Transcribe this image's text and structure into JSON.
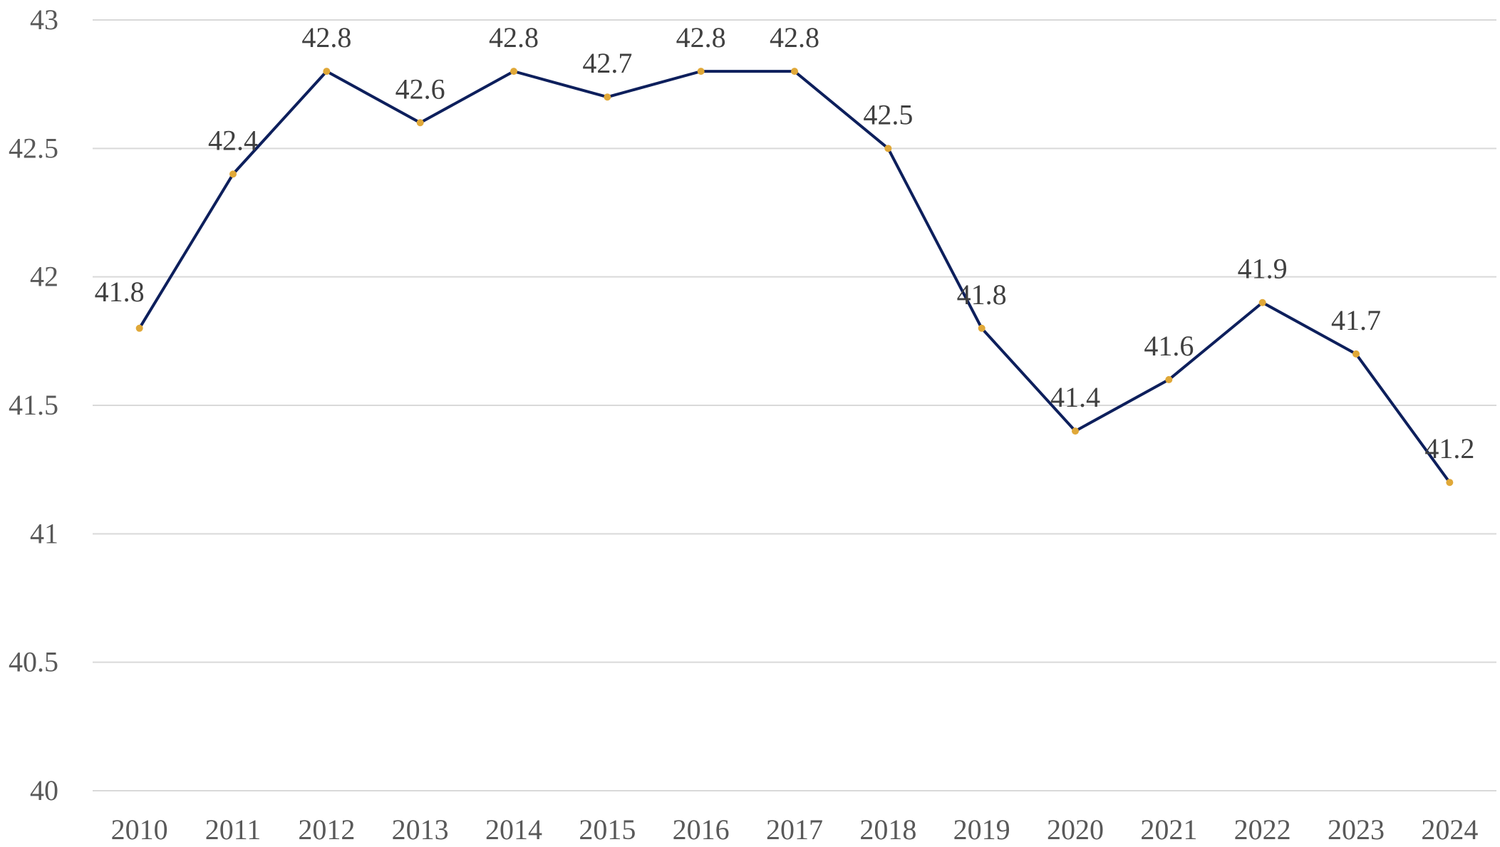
{
  "chart_data": {
    "type": "line",
    "title": "",
    "xlabel": "",
    "ylabel": "",
    "categories": [
      "2010",
      "2011",
      "2012",
      "2013",
      "2014",
      "2015",
      "2016",
      "2017",
      "2018",
      "2019",
      "2020",
      "2021",
      "2022",
      "2023",
      "2024"
    ],
    "series": [
      {
        "values": [
          41.8,
          42.4,
          42.8,
          42.6,
          42.8,
          42.7,
          42.8,
          42.8,
          42.5,
          41.8,
          41.4,
          41.6,
          41.9,
          41.7,
          41.2
        ],
        "value_labels": [
          "41.8",
          "42.4",
          "42.8",
          "42.6",
          "42.8",
          "42.7",
          "42.8",
          "42.8",
          "42.5",
          "41.8",
          "41.4",
          "41.6",
          "41.9",
          "41.7",
          "41.2"
        ]
      }
    ],
    "ylim": [
      40,
      43
    ],
    "yticks": [
      "40",
      "40.5",
      "41",
      "41.5",
      "42",
      "42.5",
      "43"
    ],
    "grid": true,
    "legend": "none",
    "colors": {
      "line": "#0d1f5c",
      "marker": "#e0a838",
      "grid": "#d9d9d9",
      "tick_text": "#595959",
      "label_text": "#404040"
    }
  }
}
